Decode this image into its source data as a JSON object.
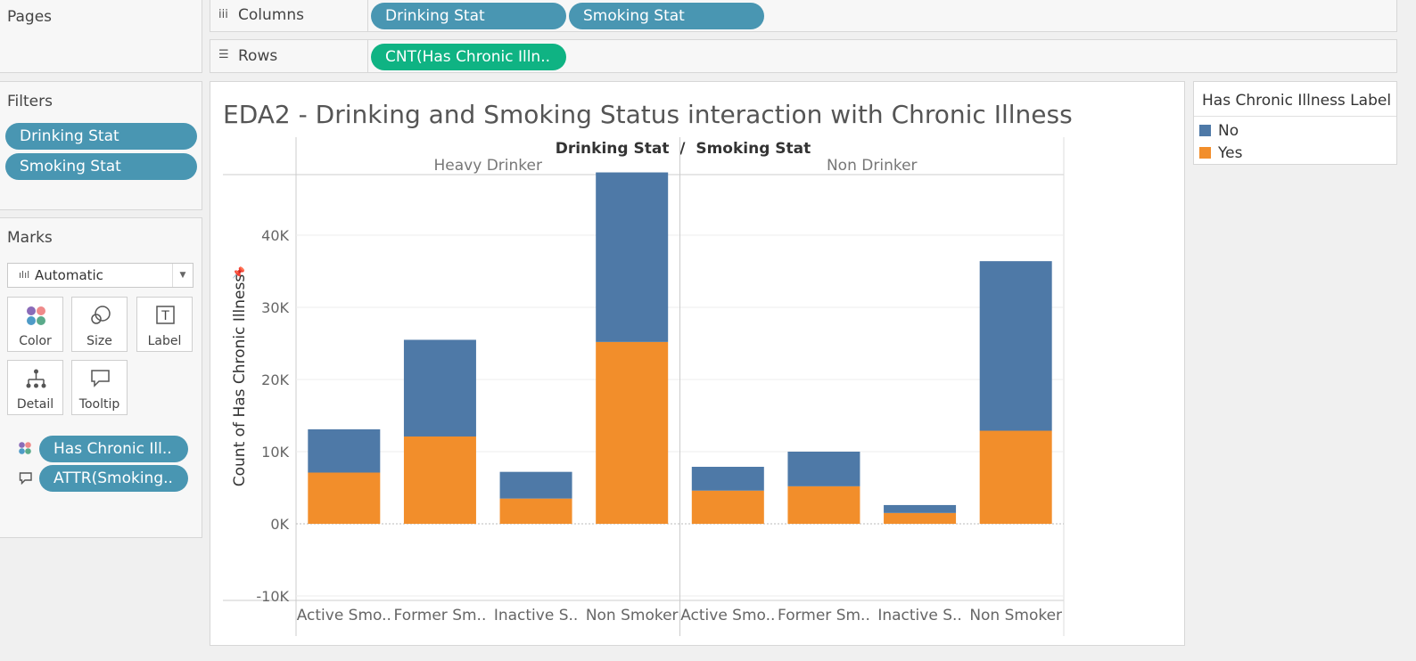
{
  "pages": {
    "title": "Pages"
  },
  "columns_shelf": {
    "label": "Columns",
    "pills": [
      "Drinking Stat",
      "Smoking Stat"
    ]
  },
  "rows_shelf": {
    "label": "Rows",
    "pills": [
      "CNT(Has Chronic Illn.."
    ]
  },
  "filters": {
    "title": "Filters",
    "pills": [
      "Drinking Stat",
      "Smoking Stat"
    ]
  },
  "marks": {
    "title": "Marks",
    "mark_type": "Automatic",
    "cards": [
      "Color",
      "Size",
      "Label",
      "Detail",
      "Tooltip"
    ],
    "fields": [
      "Has Chronic Ill..",
      "ATTR(Smoking.."
    ]
  },
  "legend": {
    "title": "Has Chronic Illness Label",
    "items": [
      {
        "label": "No",
        "color": "#4e79a7"
      },
      {
        "label": "Yes",
        "color": "#f28e2b"
      }
    ]
  },
  "chart_data": {
    "type": "bar",
    "stacked": true,
    "title": "EDA2 - Drinking and Smoking Status interaction with Chronic Illness",
    "header_title": "Drinking Stat  /  Smoking Stat",
    "ylabel": "Count of Has Chronic Illness",
    "ylim": [
      -11000,
      49000
    ],
    "yticks": [
      -10000,
      0,
      10000,
      20000,
      30000,
      40000
    ],
    "ytick_labels": [
      "-10K",
      "0K",
      "10K",
      "20K",
      "30K",
      "40K"
    ],
    "groups": [
      {
        "name": "Heavy Drinker",
        "categories": [
          "Active Smo..",
          "Former Sm..",
          "Inactive S..",
          "Non Smoker"
        ]
      },
      {
        "name": "Non Drinker",
        "categories": [
          "Active Smo..",
          "Former Sm..",
          "Inactive S..",
          "Non Smoker"
        ]
      }
    ],
    "series": [
      {
        "name": "Yes",
        "color": "#f28e2b",
        "values": [
          7100,
          12100,
          3500,
          25200,
          4600,
          5200,
          1500,
          12900
        ]
      },
      {
        "name": "No",
        "color": "#4e79a7",
        "values": [
          6000,
          13400,
          3700,
          23500,
          3300,
          4800,
          1100,
          23500
        ]
      }
    ]
  }
}
